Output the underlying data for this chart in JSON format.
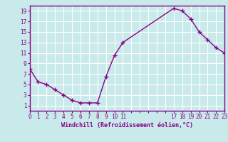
{
  "x": [
    0,
    1,
    2,
    3,
    4,
    5,
    6,
    7,
    8,
    9,
    10,
    11,
    17,
    18,
    19,
    20,
    21,
    22,
    23
  ],
  "y": [
    8,
    5.5,
    5,
    4,
    3,
    2,
    1.5,
    1.5,
    1.5,
    6.5,
    10.5,
    13,
    19.5,
    19,
    17.5,
    15,
    13.5,
    12,
    11
  ],
  "line_color": "#880088",
  "marker": "+",
  "marker_size": 4,
  "bg_color": "#c8eaea",
  "grid_color": "#ffffff",
  "xlabel": "Windchill (Refroidissement éolien,°C)",
  "tick_color": "#880088",
  "xlim": [
    0,
    23
  ],
  "ylim": [
    0,
    20
  ],
  "yticks": [
    1,
    3,
    5,
    7,
    9,
    11,
    13,
    15,
    17,
    19
  ],
  "line_width": 1.0
}
